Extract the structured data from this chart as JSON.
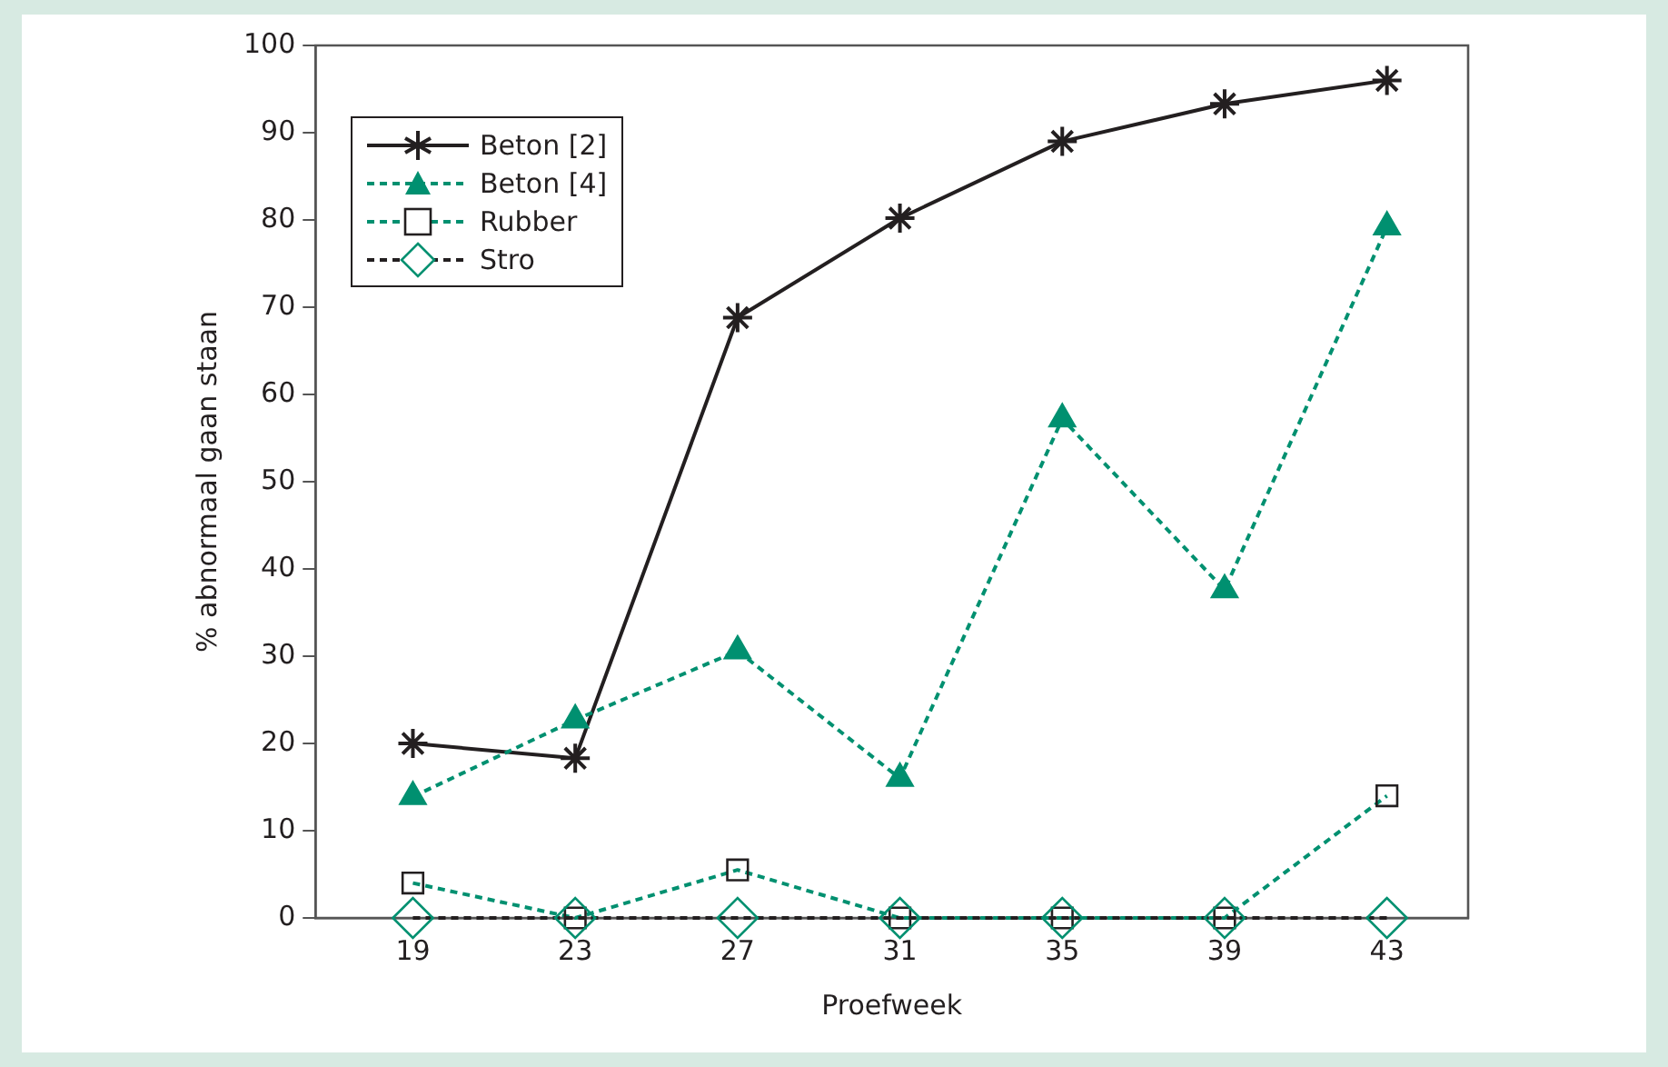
{
  "chart_data": {
    "type": "line",
    "xlabel": "Proefweek",
    "ylabel": "% abnormaal gaan staan",
    "x": [
      19,
      23,
      27,
      31,
      35,
      39,
      43
    ],
    "xlim": [
      16.6,
      45
    ],
    "xticks": [
      19,
      23,
      27,
      31,
      35,
      39,
      43
    ],
    "ylim": [
      0,
      100
    ],
    "yticks": [
      0,
      10,
      20,
      30,
      40,
      50,
      60,
      70,
      80,
      90,
      100
    ],
    "grid": false,
    "legend": "top left",
    "series": [
      {
        "name": "Beton [2]",
        "color": "#231f20",
        "marker": "cross",
        "line_style": "solid",
        "values": [
          20,
          18.3,
          68.8,
          80.2,
          89,
          93.3,
          96
        ]
      },
      {
        "name": "Beton [4]",
        "color": "#009070",
        "marker": "triangle",
        "line_style": "dashed",
        "values": [
          13.9,
          22.7,
          30.6,
          16,
          57.2,
          37.6,
          79.2
        ]
      },
      {
        "name": "Rubber",
        "color": "#009070",
        "colors": [
          "#231f20",
          "#231f20",
          "#231f20",
          "#231f20",
          "#231f20",
          "#231f20",
          "#231f20"
        ],
        "marker": "square",
        "line_style": "dashed",
        "values": [
          4,
          0,
          5.5,
          0,
          0,
          0,
          14
        ]
      },
      {
        "name": "Stro",
        "color": "#231f20",
        "colors": [
          "#009070",
          "#009070",
          "#009070",
          "#009070",
          "#009070",
          "#009070",
          "#009070"
        ],
        "marker": "diamond",
        "line_style": "dashed",
        "values": [
          0,
          0,
          0,
          0,
          0,
          0,
          0
        ]
      }
    ]
  }
}
